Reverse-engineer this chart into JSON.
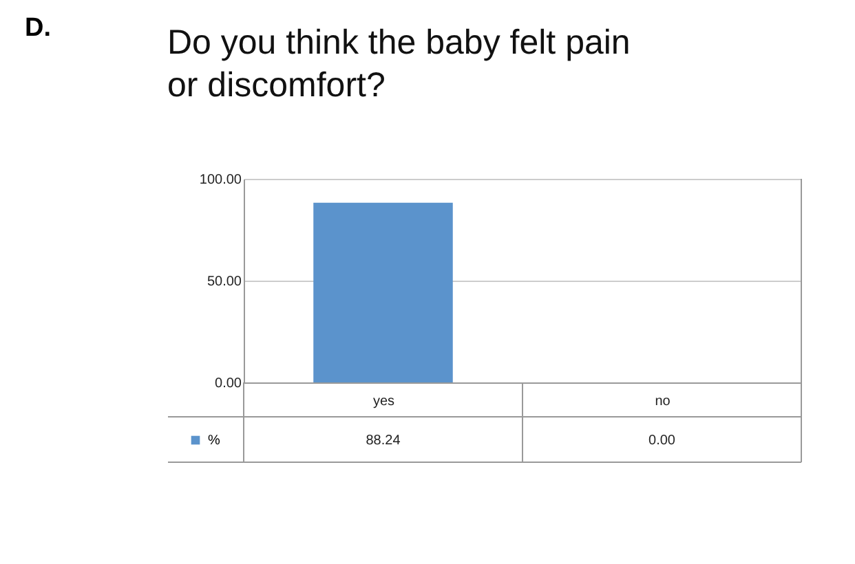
{
  "chart_data": {
    "type": "bar",
    "title": "Do you think the baby felt pain or discomfort?",
    "annotations": [
      "D."
    ],
    "categories": [
      "yes",
      "no"
    ],
    "series": [
      {
        "name": "%",
        "color": "#5b93cc",
        "values": [
          88.24,
          0.0
        ]
      }
    ],
    "value_labels": [
      "88.24",
      "0.00"
    ],
    "ylim": [
      0,
      100
    ],
    "yticks": [
      {
        "value": 0,
        "label": "0.00"
      },
      {
        "value": 50,
        "label": "50.00"
      },
      {
        "value": 100,
        "label": "100.00"
      }
    ],
    "grid": "y",
    "legend": "bottom left"
  }
}
